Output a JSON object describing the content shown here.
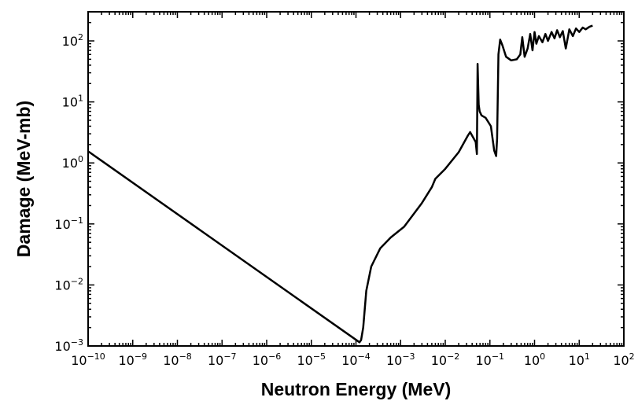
{
  "chart_data": {
    "type": "line",
    "title": "",
    "xlabel": "Neutron Energy (MeV)",
    "ylabel": "Damage  (MeV-mb)",
    "x_scale": "log",
    "y_scale": "log",
    "xlim": [
      1e-10,
      100
    ],
    "ylim": [
      0.001,
      300
    ],
    "grid": false,
    "legend": "none",
    "line_color": "#000000",
    "x_tick_labels": [
      {
        "base": "10",
        "exp": "−10",
        "value": 1e-10
      },
      {
        "base": "10",
        "exp": "−9",
        "value": 1e-09
      },
      {
        "base": "10",
        "exp": "−8",
        "value": 1e-08
      },
      {
        "base": "10",
        "exp": "−7",
        "value": 1e-07
      },
      {
        "base": "10",
        "exp": "−6",
        "value": 1e-06
      },
      {
        "base": "10",
        "exp": "−5",
        "value": 1e-05
      },
      {
        "base": "10",
        "exp": "−4",
        "value": 0.0001
      },
      {
        "base": "10",
        "exp": "−3",
        "value": 0.001
      },
      {
        "base": "10",
        "exp": "−2",
        "value": 0.01
      },
      {
        "base": "10",
        "exp": "−1",
        "value": 0.1
      },
      {
        "base": "10",
        "exp": "0",
        "value": 1
      },
      {
        "base": "10",
        "exp": "1",
        "value": 10
      },
      {
        "base": "10",
        "exp": "2",
        "value": 100
      }
    ],
    "y_tick_labels": [
      {
        "base": "10",
        "exp": "−3",
        "value": 0.001
      },
      {
        "base": "10",
        "exp": "−2",
        "value": 0.01
      },
      {
        "base": "10",
        "exp": "−1",
        "value": 0.1
      },
      {
        "base": "10",
        "exp": "0",
        "value": 1
      },
      {
        "base": "10",
        "exp": "1",
        "value": 10
      },
      {
        "base": "10",
        "exp": "2",
        "value": 100
      }
    ],
    "series": [
      {
        "x": [
          1e-10,
          0.00012,
          0.00013,
          0.000145,
          0.00017,
          0.00022,
          0.00035,
          0.0006,
          0.0012,
          0.003,
          0.005,
          0.006,
          0.01,
          0.02,
          0.032,
          0.036,
          0.048,
          0.051,
          0.053,
          0.056,
          0.059,
          0.065,
          0.08,
          0.105,
          0.125,
          0.138,
          0.145,
          0.155,
          0.17,
          0.19,
          0.23,
          0.3,
          0.4,
          0.48,
          0.53,
          0.6,
          0.7,
          0.8,
          0.9,
          1.0,
          1.1,
          1.25,
          1.5,
          1.75,
          2.0,
          2.4,
          2.8,
          3.2,
          3.7,
          4.3,
          5.0,
          6.0,
          7.2,
          8.5,
          10,
          12,
          14,
          17,
          20
        ],
        "y": [
          1.55,
          0.00115,
          0.00125,
          0.002,
          0.008,
          0.02,
          0.04,
          0.06,
          0.09,
          0.22,
          0.4,
          0.55,
          0.8,
          1.5,
          2.8,
          3.2,
          2.2,
          1.4,
          42,
          9,
          7,
          6,
          5.5,
          4,
          1.6,
          1.3,
          2.5,
          60,
          105,
          85,
          55,
          48,
          50,
          60,
          115,
          55,
          75,
          130,
          70,
          140,
          90,
          120,
          95,
          130,
          100,
          140,
          110,
          150,
          115,
          145,
          75,
          155,
          120,
          160,
          140,
          165,
          155,
          170,
          178
        ]
      }
    ]
  }
}
